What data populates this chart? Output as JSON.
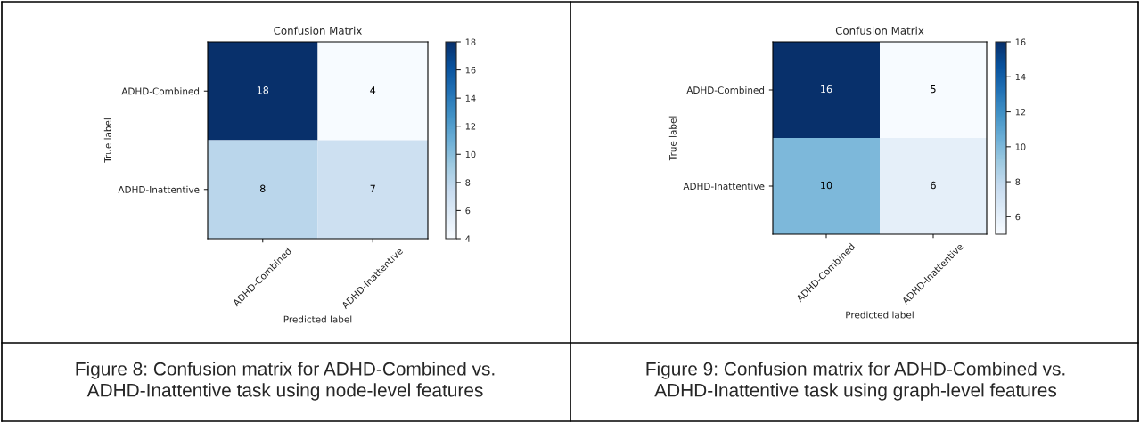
{
  "chart_data": [
    {
      "type": "heatmap",
      "title": "Confusion Matrix",
      "xlabel": "Predicted label",
      "ylabel": "True label",
      "categories": [
        "ADHD-Combined",
        "ADHD-Inattentive"
      ],
      "y_categories": [
        "ADHD-Combined",
        "ADHD-Inattentive"
      ],
      "cells": [
        [
          18,
          4
        ],
        [
          8,
          7
        ]
      ],
      "clim": [
        4,
        18
      ],
      "cticks": [
        4,
        6,
        8,
        10,
        12,
        14,
        16,
        18
      ],
      "data_labels": true,
      "annotations": [
        "Figure 8: Confusion matrix for ADHD-Combined vs.\nADHD-Inattentive task using node-level features"
      ]
    },
    {
      "type": "heatmap",
      "title": "Confusion Matrix",
      "xlabel": "Predicted label",
      "ylabel": "True label",
      "categories": [
        "ADHD-Combined",
        "ADHD-Inattentive"
      ],
      "y_categories": [
        "ADHD-Combined",
        "ADHD-Inattentive"
      ],
      "cells": [
        [
          16,
          5
        ],
        [
          10,
          6
        ]
      ],
      "clim": [
        5,
        16
      ],
      "cticks": [
        6,
        8,
        10,
        12,
        14,
        16
      ],
      "data_labels": true,
      "annotations": [
        "Figure 9: Confusion matrix for ADHD-Combined vs.\nADHD-Inattentive task using graph-level features"
      ]
    }
  ]
}
